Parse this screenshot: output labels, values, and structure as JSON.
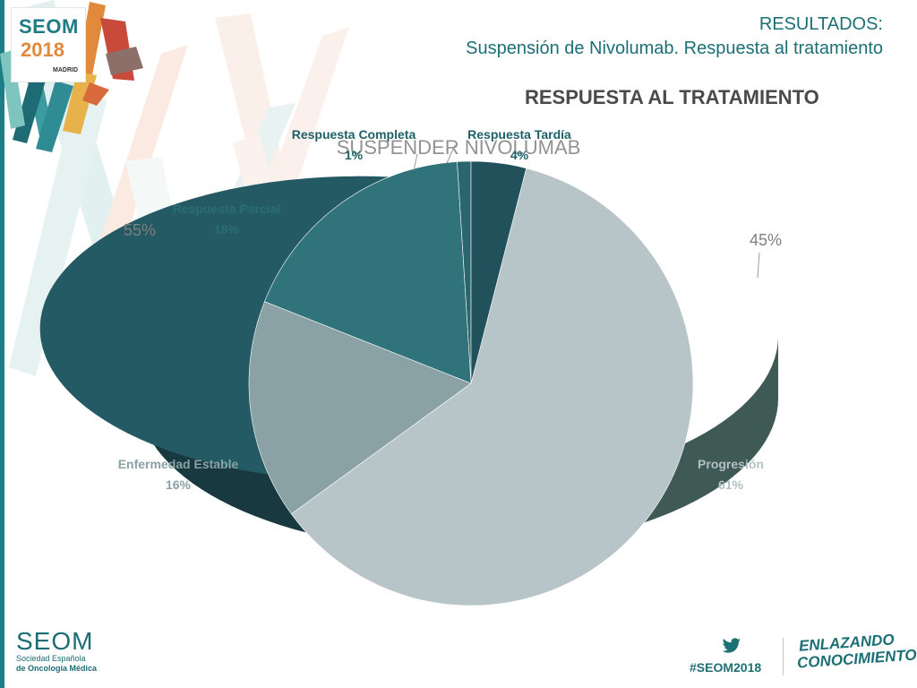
{
  "header": {
    "line1": "RESULTADOS:",
    "line2": "Suspensión de Nivolumab. Respuesta al tratamiento"
  },
  "logo": {
    "brand": "SEOM",
    "year": "2018",
    "city": "MADRID"
  },
  "footer": {
    "org": "SEOM",
    "org_sub1": "Sociedad Española",
    "org_sub2": "de Oncología Médica",
    "hashtag": "#SEOM2018",
    "slogan_line1": "ENLAZANDO",
    "slogan_line2": "CONOCIMIENTO"
  },
  "colors": {
    "accent": "#1d7f86",
    "outer_dark": "#245a63",
    "outer_light": "#b3e1cc",
    "completa": "#2b6670",
    "tardia": "#21525b",
    "parcial": "#30737b",
    "estable": "#8aa2a6",
    "progresion": "#b7c5c9"
  },
  "chart_data": [
    {
      "type": "pie",
      "title": "",
      "slices": [
        {
          "label": "",
          "value": 55
        },
        {
          "label": "",
          "value": 45
        }
      ],
      "labels_shown": [
        "55%",
        "45%"
      ],
      "overlay_label": "SUSPENDER NIVOLUMAB"
    },
    {
      "type": "pie",
      "title": "RESPUESTA AL TRATAMIENTO",
      "slices": [
        {
          "label": "Respuesta Completa",
          "value": 1,
          "display": "1%"
        },
        {
          "label": "Respuesta Parcial",
          "value": 18,
          "display": "18%"
        },
        {
          "label": "Enfermedad Estable",
          "value": 16,
          "display": "16%"
        },
        {
          "label": "Progresión",
          "value": 61,
          "display": "61%"
        },
        {
          "label": "Respuesta Tardía",
          "value": 4,
          "display": "4%"
        }
      ]
    }
  ]
}
